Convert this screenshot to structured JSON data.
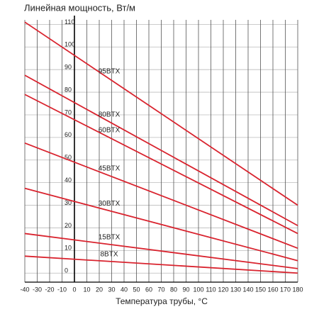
{
  "chart_data": {
    "type": "line",
    "title": "Линейная мощность, Вт/м",
    "x_label": "Температура трубы, °С",
    "x": [
      -40,
      180
    ],
    "series": [
      {
        "name": "95BTX",
        "color": "#d9232e",
        "values": [
          111,
          30
        ]
      },
      {
        "name": "80BTX",
        "color": "#d9232e",
        "values": [
          87.5,
          21
        ]
      },
      {
        "name": "60BTX",
        "color": "#d9232e",
        "values": [
          79,
          17.5
        ]
      },
      {
        "name": "45BTX",
        "color": "#d9232e",
        "values": [
          57.5,
          11
        ]
      },
      {
        "name": "30BTX",
        "color": "#d9232e",
        "values": [
          37.5,
          5.5
        ]
      },
      {
        "name": "15BTX",
        "color": "#d9232e",
        "values": [
          17.5,
          2
        ]
      },
      {
        "name": "8BTX",
        "color": "#d9232e",
        "values": [
          7.5,
          0
        ]
      }
    ],
    "xlim": [
      -40,
      180
    ],
    "xticks": [
      -40,
      -30,
      -20,
      -10,
      0,
      10,
      20,
      30,
      40,
      50,
      60,
      70,
      80,
      90,
      100,
      110,
      120,
      130,
      140,
      150,
      160,
      170,
      180
    ],
    "ylim": [
      -4,
      112
    ],
    "yticks": [
      0,
      10,
      20,
      30,
      40,
      50,
      60,
      70,
      80,
      90,
      100,
      110
    ],
    "grid": true
  }
}
